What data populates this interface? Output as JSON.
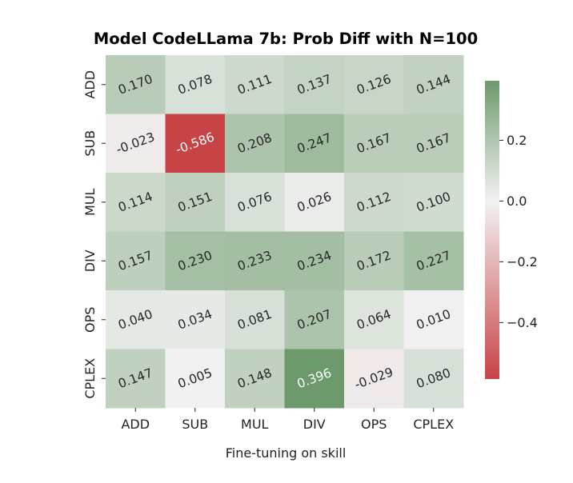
{
  "chart_data": {
    "type": "heatmap",
    "title": "Model CodeLLama 7b: Prob Diff with N=100",
    "xlabel": "Fine-tuning on skill",
    "ylabel": "",
    "x_categories": [
      "ADD",
      "SUB",
      "MUL",
      "DIV",
      "OPS",
      "CPLEX"
    ],
    "y_categories": [
      "ADD",
      "SUB",
      "MUL",
      "DIV",
      "OPS",
      "CPLEX"
    ],
    "values": [
      [
        0.17,
        0.078,
        0.111,
        0.137,
        0.126,
        0.144
      ],
      [
        -0.023,
        -0.586,
        0.208,
        0.247,
        0.167,
        0.167
      ],
      [
        0.114,
        0.151,
        0.076,
        0.026,
        0.112,
        0.1
      ],
      [
        0.157,
        0.23,
        0.233,
        0.234,
        0.172,
        0.227
      ],
      [
        0.04,
        0.034,
        0.081,
        0.207,
        0.064,
        0.01
      ],
      [
        0.147,
        0.005,
        0.148,
        0.396,
        -0.029,
        0.08
      ]
    ],
    "value_labels": [
      [
        "0.170",
        "0.078",
        "0.111",
        "0.137",
        "0.126",
        "0.144"
      ],
      [
        "-0.023",
        "-0.586",
        "0.208",
        "0.247",
        "0.167",
        "0.167"
      ],
      [
        "0.114",
        "0.151",
        "0.076",
        "0.026",
        "0.112",
        "0.100"
      ],
      [
        "0.157",
        "0.230",
        "0.233",
        "0.234",
        "0.172",
        "0.227"
      ],
      [
        "0.040",
        "0.034",
        "0.081",
        "0.207",
        "0.064",
        "0.010"
      ],
      [
        "0.147",
        "0.005",
        "0.148",
        "0.396",
        "-0.029",
        "0.080"
      ]
    ],
    "colorbar": {
      "range": [
        -0.586,
        0.396
      ],
      "ticks": [
        0.2,
        0.0,
        -0.2,
        -0.4
      ],
      "tick_labels": [
        "0.2",
        "0.0",
        "−0.2",
        "−0.4"
      ]
    },
    "colors": {
      "negative": "#c84346",
      "center": "#f2f2f2",
      "positive": "#6c9a6c"
    }
  }
}
